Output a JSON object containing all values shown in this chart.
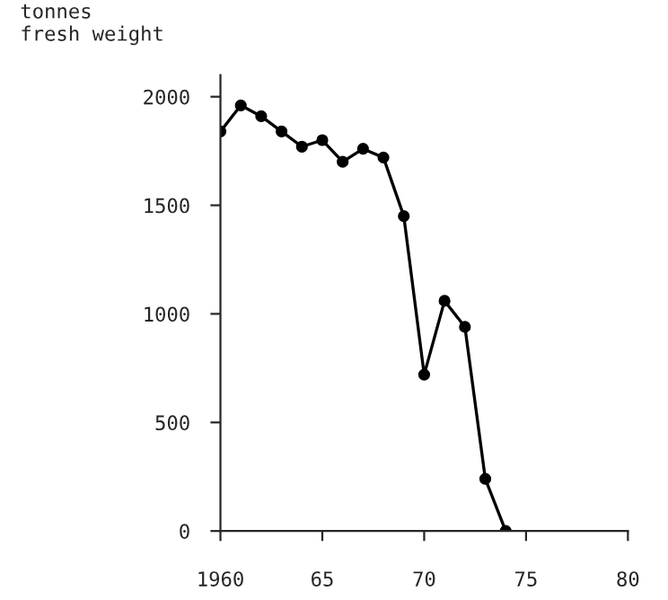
{
  "chart_data": {
    "type": "line",
    "ylabel": "tonnes\nfresh weight",
    "x": [
      1960,
      1961,
      1962,
      1963,
      1964,
      1965,
      1966,
      1967,
      1968,
      1969,
      1970,
      1971,
      1972,
      1973,
      1974
    ],
    "series": [
      {
        "color": "#000000",
        "values": [
          1840,
          1960,
          1910,
          1840,
          1770,
          1800,
          1700,
          1760,
          1720,
          1450,
          720,
          1060,
          940,
          240,
          0
        ]
      }
    ],
    "xlim": [
      1960,
      1980
    ],
    "xticks": [
      {
        "value": 1960,
        "label": "1960"
      },
      {
        "value": 1965,
        "label": "65"
      },
      {
        "value": 1970,
        "label": "70"
      },
      {
        "value": 1975,
        "label": "75"
      },
      {
        "value": 1980,
        "label": "80"
      }
    ],
    "ylim": [
      0,
      2100
    ],
    "yticks": [
      0,
      500,
      1000,
      1500,
      2000
    ],
    "marker": "circle",
    "line_style": "solid",
    "grid": false
  }
}
